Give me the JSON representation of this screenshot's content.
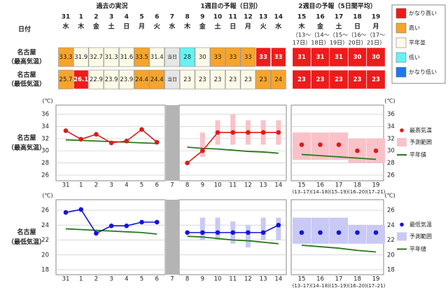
{
  "table": {
    "header_label": "日付",
    "groups": [
      "過去の実況",
      "1週目の予報（日別）",
      "2週目の予報（5日間平均）"
    ],
    "dates": [
      {
        "day": "31",
        "weekday": "水"
      },
      {
        "day": "1",
        "weekday": "木"
      },
      {
        "day": "2",
        "weekday": "金"
      },
      {
        "day": "3",
        "weekday": "土"
      },
      {
        "day": "4",
        "weekday": "日"
      },
      {
        "day": "5",
        "weekday": "月"
      },
      {
        "day": "6",
        "weekday": "火"
      },
      {
        "day": "7",
        "weekday": "水"
      },
      {
        "day": "8",
        "weekday": "木"
      },
      {
        "day": "9",
        "weekday": "金"
      },
      {
        "day": "10",
        "weekday": "土"
      },
      {
        "day": "11",
        "weekday": "日"
      },
      {
        "day": "12",
        "weekday": "月"
      },
      {
        "day": "13",
        "weekday": "火"
      },
      {
        "day": "14",
        "weekday": "水"
      }
    ],
    "week2_dates": [
      {
        "day": "15",
        "weekday": "木",
        "period": [
          "（13～",
          "17日）"
        ]
      },
      {
        "day": "16",
        "weekday": "金",
        "period": [
          "（14～",
          "18日）"
        ]
      },
      {
        "day": "17",
        "weekday": "土",
        "period": [
          "（15～",
          "19日）"
        ]
      },
      {
        "day": "18",
        "weekday": "日",
        "period": [
          "（16～",
          "20日）"
        ]
      },
      {
        "day": "19",
        "weekday": "月",
        "period": [
          "（17～",
          "21日）"
        ]
      }
    ],
    "rows": [
      {
        "label": [
          "名古屋",
          "（最高気温）"
        ],
        "cells": [
          {
            "value": 33.3,
            "color": "#f6a42b"
          },
          {
            "value": 31.9,
            "color": "#fdfbe8"
          },
          {
            "value": 32.7,
            "color": "#fdfbe8"
          },
          {
            "value": 31.3,
            "color": "#fdfbe8"
          },
          {
            "value": 31.6,
            "color": "#fdfbe8"
          },
          {
            "value": 33.5,
            "color": "#f6a42b"
          },
          {
            "value": 31.4,
            "color": "#fdfbe8"
          },
          {
            "value": "当日",
            "color": "#e6e6e6"
          },
          {
            "value": 28,
            "color": "#66f2f2"
          },
          {
            "value": 30,
            "color": "#fdfbe8"
          },
          {
            "value": 33,
            "color": "#f6a42b"
          },
          {
            "value": 33,
            "color": "#f6a42b"
          },
          {
            "value": 33,
            "color": "#f6a42b"
          },
          {
            "value": 33,
            "color": "#ee1b1b"
          },
          {
            "value": 33,
            "color": "#ee1b1b"
          },
          {
            "value": 31,
            "color": "#ee1b1b"
          },
          {
            "value": 31,
            "color": "#ee1b1b"
          },
          {
            "value": 31,
            "color": "#ee1b1b"
          },
          {
            "value": 30,
            "color": "#ee1b1b"
          },
          {
            "value": 30,
            "color": "#ee1b1b"
          }
        ]
      },
      {
        "label": [
          "名古屋",
          "（最低気温）"
        ],
        "cells": [
          {
            "value": 25.7,
            "color": "#f6a42b"
          },
          {
            "value": 26.1,
            "color": "#ee1b1b"
          },
          {
            "value": 22.9,
            "color": "#fdfbe8"
          },
          {
            "value": 23.9,
            "color": "#fdfbe8"
          },
          {
            "value": 23.9,
            "color": "#fdfbe8"
          },
          {
            "value": 24.4,
            "color": "#f6a42b"
          },
          {
            "value": 24.4,
            "color": "#f6a42b"
          },
          {
            "value": "当日",
            "color": "#e6e6e6"
          },
          {
            "value": 23,
            "color": "#fdfbe8"
          },
          {
            "value": 23,
            "color": "#fdfbe8"
          },
          {
            "value": 23,
            "color": "#fdfbe8"
          },
          {
            "value": 23,
            "color": "#fdfbe8"
          },
          {
            "value": 23,
            "color": "#fdfbe8"
          },
          {
            "value": 23,
            "color": "#f6a42b"
          },
          {
            "value": 24,
            "color": "#f6a42b"
          },
          {
            "value": 23,
            "color": "#ee1b1b"
          },
          {
            "value": 23,
            "color": "#ee1b1b"
          },
          {
            "value": 23,
            "color": "#ee1b1b"
          },
          {
            "value": 23,
            "color": "#ee1b1b"
          },
          {
            "value": 23,
            "color": "#ee1b1b"
          }
        ]
      }
    ],
    "legend": [
      {
        "label": "かなり高い",
        "color": "#ee1b1b"
      },
      {
        "label": "高い",
        "color": "#f6a42b"
      },
      {
        "label": "平年並",
        "color": "#fdfbe8"
      },
      {
        "label": "低い",
        "color": "#66f2f2"
      },
      {
        "label": "かなり低い",
        "color": "#1e78f0"
      }
    ]
  },
  "chart_data": [
    {
      "type": "line",
      "label": [
        "名古屋",
        "（最高気温）"
      ],
      "y_unit": "(℃)",
      "categories": [
        "31",
        "1",
        "2",
        "3",
        "4",
        "5",
        "6",
        "7",
        "8",
        "9",
        "10",
        "11",
        "12",
        "13",
        "14",
        "15",
        "16",
        "17",
        "18",
        "19"
      ],
      "sublabels": [
        null,
        null,
        null,
        null,
        null,
        null,
        null,
        null,
        null,
        null,
        null,
        null,
        null,
        null,
        null,
        "(13–17)",
        "(14–18)",
        "(15–19)",
        "(16–20)",
        "(17–21)"
      ],
      "ylim": [
        26,
        36
      ],
      "yticks": [
        26,
        28,
        30,
        32,
        34,
        36
      ],
      "series": [
        {
          "name": "最高気温",
          "color": "#d91c1c",
          "values": [
            33.3,
            31.9,
            32.7,
            31.3,
            31.6,
            33.5,
            31.4,
            null,
            28,
            30,
            33,
            33,
            33,
            33,
            33,
            31,
            31,
            31,
            30,
            30
          ]
        },
        {
          "name": "予測範囲",
          "color": "#f9c2c8",
          "low": [
            null,
            null,
            null,
            null,
            null,
            null,
            null,
            null,
            null,
            29,
            31,
            31,
            31,
            31,
            31,
            28.5,
            28.5,
            28.5,
            28,
            28
          ],
          "high": [
            null,
            null,
            null,
            null,
            null,
            null,
            null,
            null,
            null,
            33,
            35,
            36,
            35,
            35,
            35,
            33,
            33,
            33,
            32,
            32
          ]
        },
        {
          "name": "平年値",
          "color": "#2a7a1a",
          "values": [
            31.8,
            31.7,
            31.6,
            31.5,
            31.4,
            31.3,
            31.2,
            null,
            30.6,
            30.4,
            30.3,
            30.1,
            29.9,
            29.8,
            29.6,
            29.4,
            29.2,
            29.0,
            28.8,
            28.6
          ]
        }
      ]
    },
    {
      "type": "line",
      "label": [
        "名古屋",
        "（最低気温）"
      ],
      "y_unit": "(℃)",
      "categories": [
        "31",
        "1",
        "2",
        "3",
        "4",
        "5",
        "6",
        "7",
        "8",
        "9",
        "10",
        "11",
        "12",
        "13",
        "14",
        "15",
        "16",
        "17",
        "18",
        "19"
      ],
      "sublabels": [
        null,
        null,
        null,
        null,
        null,
        null,
        null,
        null,
        null,
        null,
        null,
        null,
        null,
        null,
        null,
        "(13–17)",
        "(14–18)",
        "(15–19)",
        "(16–20)",
        "(17–21)"
      ],
      "ylim": [
        18,
        26
      ],
      "yticks": [
        18,
        20,
        22,
        24,
        26
      ],
      "series": [
        {
          "name": "最低気温",
          "color": "#1414d8",
          "values": [
            25.7,
            26.1,
            22.9,
            23.9,
            23.9,
            24.4,
            24.4,
            null,
            23,
            23,
            23,
            23,
            23,
            23,
            24,
            23,
            23,
            23,
            23,
            23
          ]
        },
        {
          "name": "予測範囲",
          "color": "#c9c9f6",
          "low": [
            null,
            null,
            null,
            null,
            null,
            null,
            null,
            null,
            null,
            22,
            22,
            21.5,
            21,
            22,
            22,
            21.5,
            21.5,
            21.5,
            21.5,
            21.5
          ],
          "high": [
            null,
            null,
            null,
            null,
            null,
            null,
            null,
            null,
            null,
            25,
            25,
            24.5,
            24,
            25,
            25,
            25,
            25,
            25,
            24,
            24
          ]
        },
        {
          "name": "平年値",
          "color": "#2a7a1a",
          "values": [
            23.5,
            23.4,
            23.3,
            23.2,
            23.1,
            23.0,
            22.8,
            null,
            22.5,
            22.4,
            22.2,
            22.0,
            21.9,
            21.7,
            21.5,
            21.3,
            21.1,
            20.9,
            20.6,
            20.4
          ]
        }
      ]
    }
  ]
}
